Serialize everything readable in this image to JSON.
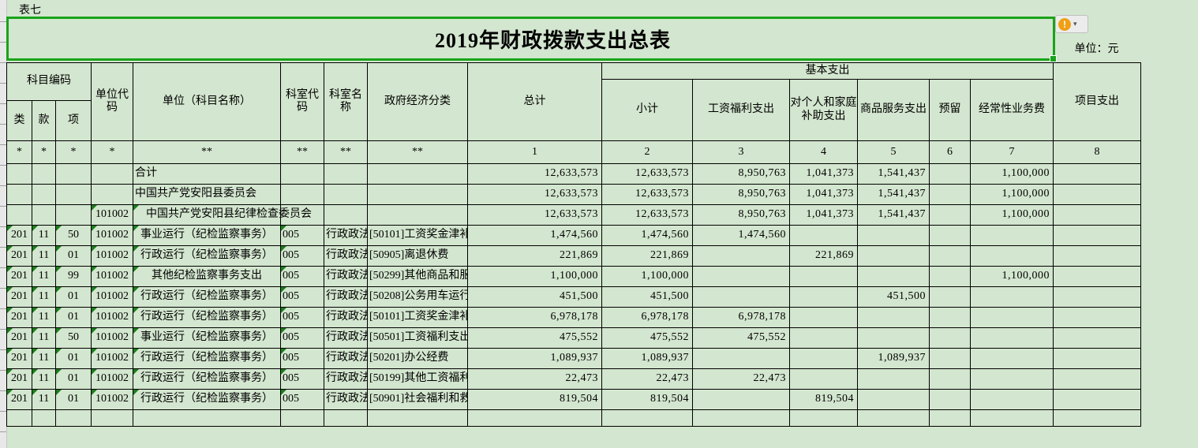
{
  "page": {
    "sheet_label": "表七",
    "title": "2019年财政拨款支出总表",
    "unit_label": "单位：元"
  },
  "error_button": {
    "icon": "!",
    "caret": "▾"
  },
  "colors": {
    "background": "#d3e6cf",
    "selection_border": "#1aa31a",
    "cell_border": "#000000",
    "error_indicator_triangle": "#1c7d1c",
    "warning_icon": "#f0a014",
    "gutter": "#e8e8e8"
  },
  "table": {
    "header": {
      "subject_code_group": "科目编码",
      "cls": "类",
      "section": "款",
      "item": "项",
      "unit_code": "单位代码",
      "unit_name": "单位（科目名称）",
      "office_code": "科室代码",
      "office_name": "科室名称",
      "gov_econ_class": "政府经济分类",
      "grand_total": "总计",
      "basic_group": "基本支出",
      "subtotal": "小计",
      "salary_welfare": "工资福利支出",
      "personal_family_subsidy": "对个人和家庭补助支出",
      "goods_services": "商品服务支出",
      "reserved": "预留",
      "regular_business": "经常性业务费",
      "project_expenditure": "项目支出"
    },
    "code_row": [
      "*",
      "*",
      "*",
      "*",
      "**",
      "**",
      "**",
      "**",
      "1",
      "2",
      "3",
      "4",
      "5",
      "6",
      "7",
      "8"
    ],
    "rows": [
      {
        "na": "left",
        "tri": [],
        "cells": [
          "",
          "",
          "",
          "",
          "合计",
          "",
          "",
          "",
          "12,633,573",
          "12,633,573",
          "8,950,763",
          "1,041,373",
          "1,541,437",
          "",
          "1,100,000",
          ""
        ]
      },
      {
        "na": "left",
        "tri": [],
        "cells": [
          "",
          "",
          "",
          "",
          "中国共产党安阳县委员会",
          "",
          "",
          "",
          "12,633,573",
          "12,633,573",
          "8,950,763",
          "1,041,373",
          "1,541,437",
          "",
          "1,100,000",
          ""
        ]
      },
      {
        "na": "indent",
        "tri": [
          3,
          4
        ],
        "cells": [
          "",
          "",
          "",
          "101002",
          "中国共产党安阳县纪律检查委员会",
          "",
          "",
          "",
          "12,633,573",
          "12,633,573",
          "8,950,763",
          "1,041,373",
          "1,541,437",
          "",
          "1,100,000",
          ""
        ]
      },
      {
        "na": "center",
        "tri": [
          0,
          1,
          2,
          3,
          4,
          5
        ],
        "cells": [
          "201",
          "11",
          "50",
          "101002",
          "事业运行（纪检监察事务）",
          "005",
          "行政政法",
          "[50101]工资奖金津补",
          "1,474,560",
          "1,474,560",
          "1,474,560",
          "",
          "",
          "",
          "",
          ""
        ]
      },
      {
        "na": "center",
        "tri": [
          0,
          1,
          2,
          3,
          4,
          5
        ],
        "cells": [
          "201",
          "11",
          "01",
          "101002",
          "行政运行（纪检监察事务）",
          "005",
          "行政政法",
          "[50905]离退休费",
          "221,869",
          "221,869",
          "",
          "221,869",
          "",
          "",
          "",
          ""
        ]
      },
      {
        "na": "center",
        "tri": [
          0,
          1,
          2,
          3,
          4,
          5
        ],
        "cells": [
          "201",
          "11",
          "99",
          "101002",
          "其他纪检监察事务支出",
          "005",
          "行政政法",
          "[50299]其他商品和服",
          "1,100,000",
          "1,100,000",
          "",
          "",
          "",
          "",
          "1,100,000",
          ""
        ]
      },
      {
        "na": "center",
        "tri": [
          0,
          1,
          2,
          3,
          4,
          5
        ],
        "cells": [
          "201",
          "11",
          "01",
          "101002",
          "行政运行（纪检监察事务）",
          "005",
          "行政政法",
          "[50208]公务用车运行",
          "451,500",
          "451,500",
          "",
          "",
          "451,500",
          "",
          "",
          ""
        ]
      },
      {
        "na": "center",
        "tri": [
          0,
          1,
          2,
          3,
          4,
          5
        ],
        "cells": [
          "201",
          "11",
          "01",
          "101002",
          "行政运行（纪检监察事务）",
          "005",
          "行政政法",
          "[50101]工资奖金津补",
          "6,978,178",
          "6,978,178",
          "6,978,178",
          "",
          "",
          "",
          "",
          ""
        ]
      },
      {
        "na": "center",
        "tri": [
          0,
          1,
          2,
          3,
          4,
          5
        ],
        "cells": [
          "201",
          "11",
          "50",
          "101002",
          "事业运行（纪检监察事务）",
          "005",
          "行政政法",
          "[50501]工资福利支出",
          "475,552",
          "475,552",
          "475,552",
          "",
          "",
          "",
          "",
          ""
        ]
      },
      {
        "na": "center",
        "tri": [
          0,
          1,
          2,
          3,
          4,
          5
        ],
        "cells": [
          "201",
          "11",
          "01",
          "101002",
          "行政运行（纪检监察事务）",
          "005",
          "行政政法",
          "[50201]办公经费",
          "1,089,937",
          "1,089,937",
          "",
          "",
          "1,089,937",
          "",
          "",
          ""
        ]
      },
      {
        "na": "center",
        "tri": [
          0,
          1,
          2,
          3,
          4,
          5
        ],
        "cells": [
          "201",
          "11",
          "01",
          "101002",
          "行政运行（纪检监察事务）",
          "005",
          "行政政法",
          "[50199]其他工资福利",
          "22,473",
          "22,473",
          "22,473",
          "",
          "",
          "",
          "",
          ""
        ]
      },
      {
        "na": "center",
        "tri": [
          0,
          1,
          2,
          3,
          4,
          5
        ],
        "cells": [
          "201",
          "11",
          "01",
          "101002",
          "行政运行（纪检监察事务）",
          "005",
          "行政政法",
          "[50901]社会福利和救",
          "819,504",
          "819,504",
          "",
          "819,504",
          "",
          "",
          "",
          ""
        ]
      },
      {
        "na": "center",
        "tri": [],
        "cells": [
          "",
          "",
          "",
          "",
          "",
          "",
          "",
          "",
          "",
          "",
          "",
          "",
          "",
          "",
          "",
          ""
        ]
      }
    ]
  }
}
